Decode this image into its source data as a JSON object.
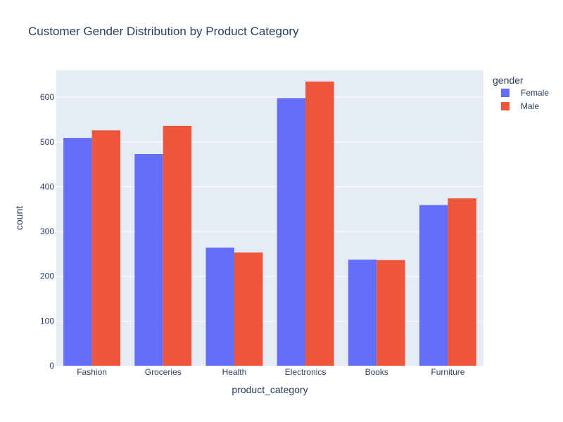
{
  "chart_data": {
    "type": "bar",
    "title": "Customer Gender Distribution by Product Category",
    "xlabel": "product_category",
    "ylabel": "count",
    "categories": [
      "Fashion",
      "Groceries",
      "Health",
      "Electronics",
      "Books",
      "Furniture"
    ],
    "series": [
      {
        "name": "Female",
        "color": "#636efa",
        "values": [
          509,
          473,
          264,
          598,
          237,
          359
        ]
      },
      {
        "name": "Male",
        "color": "#ef553b",
        "values": [
          526,
          536,
          253,
          635,
          236,
          374
        ]
      }
    ],
    "ylim": [
      0,
      660
    ],
    "yticks": [
      0,
      100,
      200,
      300,
      400,
      500,
      600
    ],
    "legend": {
      "title": "gender",
      "placement": "top-right"
    },
    "grid": true,
    "plot_background": "#e5ecf6"
  }
}
